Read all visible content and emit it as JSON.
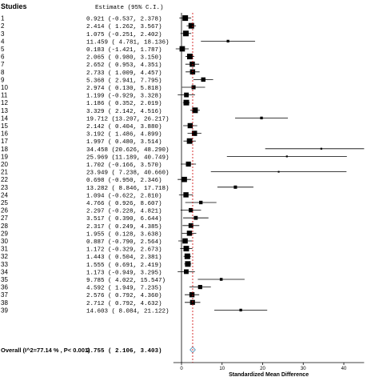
{
  "chart_data": {
    "type": "forest",
    "header": {
      "studies": "Studies",
      "estimate": "Estimate (95% C.I.)"
    },
    "studies": [
      {
        "label": "1",
        "est": "0.921",
        "lo": "-0.537",
        "hi": "2.378"
      },
      {
        "label": "2",
        "est": "2.414",
        "lo": "1.262",
        "hi": "3.567"
      },
      {
        "label": "3",
        "est": "1.075",
        "lo": "-0.251",
        "hi": "2.402"
      },
      {
        "label": "4",
        "est": "11.459",
        "lo": "4.781",
        "hi": "18.136"
      },
      {
        "label": "5",
        "est": "0.183",
        "lo": "-1.421",
        "hi": "1.787"
      },
      {
        "label": "6",
        "est": "2.065",
        "lo": "0.980",
        "hi": "3.150"
      },
      {
        "label": "7",
        "est": "2.652",
        "lo": "0.953",
        "hi": "4.351"
      },
      {
        "label": "8",
        "est": "2.733",
        "lo": "1.009",
        "hi": "4.457"
      },
      {
        "label": "9",
        "est": "5.368",
        "lo": "2.941",
        "hi": "7.795"
      },
      {
        "label": "10",
        "est": "2.974",
        "lo": "0.130",
        "hi": "5.818"
      },
      {
        "label": "11",
        "est": "1.199",
        "lo": "-0.929",
        "hi": "3.328"
      },
      {
        "label": "12",
        "est": "1.186",
        "lo": "0.352",
        "hi": "2.019"
      },
      {
        "label": "13",
        "est": "3.329",
        "lo": "2.142",
        "hi": "4.516"
      },
      {
        "label": "14",
        "est": "19.712",
        "lo": "13.207",
        "hi": "26.217"
      },
      {
        "label": "15",
        "est": "2.142",
        "lo": "0.404",
        "hi": "3.880"
      },
      {
        "label": "16",
        "est": "3.192",
        "lo": "1.486",
        "hi": "4.899"
      },
      {
        "label": "17",
        "est": "1.997",
        "lo": "0.480",
        "hi": "3.514"
      },
      {
        "label": "18",
        "est": "34.458",
        "lo": "20.626",
        "hi": "48.290"
      },
      {
        "label": "19",
        "est": "25.969",
        "lo": "11.189",
        "hi": "40.749"
      },
      {
        "label": "20",
        "est": "1.702",
        "lo": "-0.166",
        "hi": "3.570"
      },
      {
        "label": "21",
        "est": "23.949",
        "lo": "7.238",
        "hi": "40.660"
      },
      {
        "label": "22",
        "est": "0.698",
        "lo": "-0.950",
        "hi": "2.346"
      },
      {
        "label": "23",
        "est": "13.282",
        "lo": "8.846",
        "hi": "17.718"
      },
      {
        "label": "24",
        "est": "1.094",
        "lo": "-0.622",
        "hi": "2.810"
      },
      {
        "label": "25",
        "est": "4.766",
        "lo": "0.926",
        "hi": "8.607"
      },
      {
        "label": "26",
        "est": "2.297",
        "lo": "-0.228",
        "hi": "4.821"
      },
      {
        "label": "27",
        "est": "3.517",
        "lo": "0.390",
        "hi": "6.644"
      },
      {
        "label": "28",
        "est": "2.317",
        "lo": "0.249",
        "hi": "4.385"
      },
      {
        "label": "29",
        "est": "1.955",
        "lo": "0.128",
        "hi": "3.638"
      },
      {
        "label": "30",
        "est": "0.887",
        "lo": "-0.790",
        "hi": "2.564"
      },
      {
        "label": "31",
        "est": "1.172",
        "lo": "-0.329",
        "hi": "2.673"
      },
      {
        "label": "32",
        "est": "1.443",
        "lo": "0.504",
        "hi": "2.381"
      },
      {
        "label": "33",
        "est": "1.555",
        "lo": "0.691",
        "hi": "2.419"
      },
      {
        "label": "34",
        "est": "1.173",
        "lo": "-0.949",
        "hi": "3.295"
      },
      {
        "label": "35",
        "est": "9.785",
        "lo": "4.022",
        "hi": "15.547"
      },
      {
        "label": "36",
        "est": "4.592",
        "lo": "1.949",
        "hi": "7.235"
      },
      {
        "label": "37",
        "est": "2.576",
        "lo": "0.792",
        "hi": "4.360"
      },
      {
        "label": "38",
        "est": "2.712",
        "lo": "0.792",
        "hi": "4.632"
      },
      {
        "label": "39",
        "est": "14.603",
        "lo": "8.084",
        "hi": "21.122"
      }
    ],
    "overall": {
      "label": "Overall (I^2=77.14 % , P< 0.001)",
      "est": "2.755",
      "lo": "2.106",
      "hi": "3.403"
    },
    "xaxis": {
      "label": "Standardized Mean Difference",
      "ticks": [
        0,
        10,
        20,
        30,
        40
      ],
      "xlim": [
        -2,
        45
      ]
    },
    "reference_line_x": 2.755,
    "colors": {
      "marker": "#000000",
      "ref_line": "#cc0000",
      "overall_diamond": "#4a90b8"
    }
  }
}
